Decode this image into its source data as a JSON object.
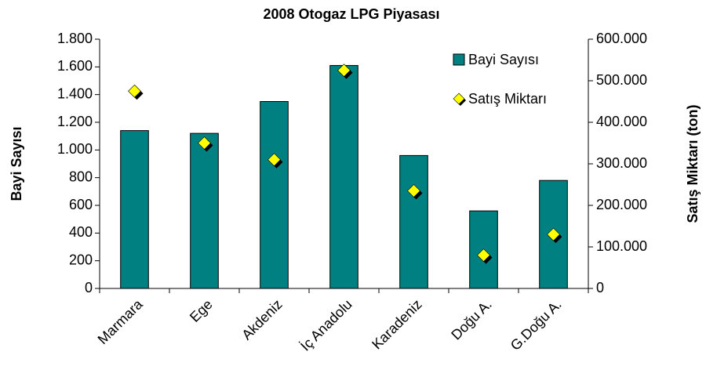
{
  "chart_data": {
    "type": "bar",
    "title": "2008 Otogaz LPG Piyasası",
    "ylabel": "Bayi Sayısı",
    "y2label": "Satış Miktarı (ton)",
    "categories": [
      "Marmara",
      "Ege",
      "Akdeniz",
      "İç Anadolu",
      "Karadeniz",
      "Doğu A.",
      "G.Doğu A."
    ],
    "series": [
      {
        "name": "Bayi Sayısı",
        "type": "bar",
        "color": "#008080",
        "values": [
          1140,
          1120,
          1350,
          1610,
          960,
          560,
          780
        ]
      },
      {
        "name": "Satış Miktarı",
        "type": "scatter",
        "axis": "y2",
        "color": "#ffff00",
        "values": [
          475000,
          350000,
          310000,
          525000,
          235000,
          80000,
          130000
        ]
      }
    ],
    "ylim": [
      0,
      1800
    ],
    "yticks": [
      0,
      200,
      400,
      600,
      800,
      {
        "value": 1000,
        "label": "1.000"
      },
      {
        "value": 1200,
        "label": "1.200"
      },
      {
        "value": 1400,
        "label": "1.400"
      },
      {
        "value": 1600,
        "label": "1.600"
      },
      {
        "value": 1800,
        "label": "1.800"
      }
    ],
    "y2lim": [
      0,
      600000
    ],
    "y2ticks": [
      0,
      {
        "value": 100000,
        "label": "100.000"
      },
      {
        "value": 200000,
        "label": "200.000"
      },
      {
        "value": 300000,
        "label": "300.000"
      },
      {
        "value": 400000,
        "label": "400.000"
      },
      {
        "value": 500000,
        "label": "500.000"
      },
      {
        "value": 600000,
        "label": "600.000"
      }
    ],
    "grid": false,
    "legend": "top-right"
  }
}
